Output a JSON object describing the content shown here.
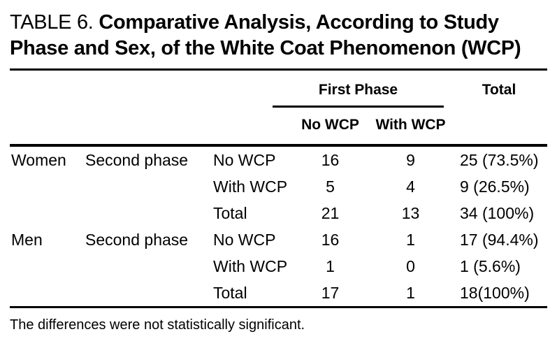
{
  "title": {
    "label": "TABLE 6.",
    "line1": "Comparative Analysis, According to Study",
    "line2": "Phase and Sex, of the White Coat Phenomenon (WCP)"
  },
  "table": {
    "spanner_header": "First Phase",
    "total_header": "Total",
    "sub_headers": [
      "No WCP",
      "With WCP"
    ],
    "rows": [
      {
        "sex": "Women",
        "phase": "Second phase",
        "category": "No WCP",
        "no_wcp": "16",
        "with_wcp": "9",
        "total": "25 (73.5%)"
      },
      {
        "sex": "",
        "phase": "",
        "category": "With WCP",
        "no_wcp": "5",
        "with_wcp": "4",
        "total": "9 (26.5%)"
      },
      {
        "sex": "",
        "phase": "",
        "category": "Total",
        "no_wcp": "21",
        "with_wcp": "13",
        "total": "34 (100%)"
      },
      {
        "sex": "Men",
        "phase": "Second phase",
        "category": "No WCP",
        "no_wcp": "16",
        "with_wcp": "1",
        "total": "17 (94.4%)"
      },
      {
        "sex": "",
        "phase": "",
        "category": "With WCP",
        "no_wcp": "1",
        "with_wcp": "0",
        "total": "1 (5.6%)"
      },
      {
        "sex": "",
        "phase": "",
        "category": "Total",
        "no_wcp": "17",
        "with_wcp": "1",
        "total": "18(100%)"
      }
    ]
  },
  "footnote": "The differences were not statistically significant.",
  "colors": {
    "text": "#000000",
    "background": "#ffffff",
    "rule": "#000000"
  }
}
